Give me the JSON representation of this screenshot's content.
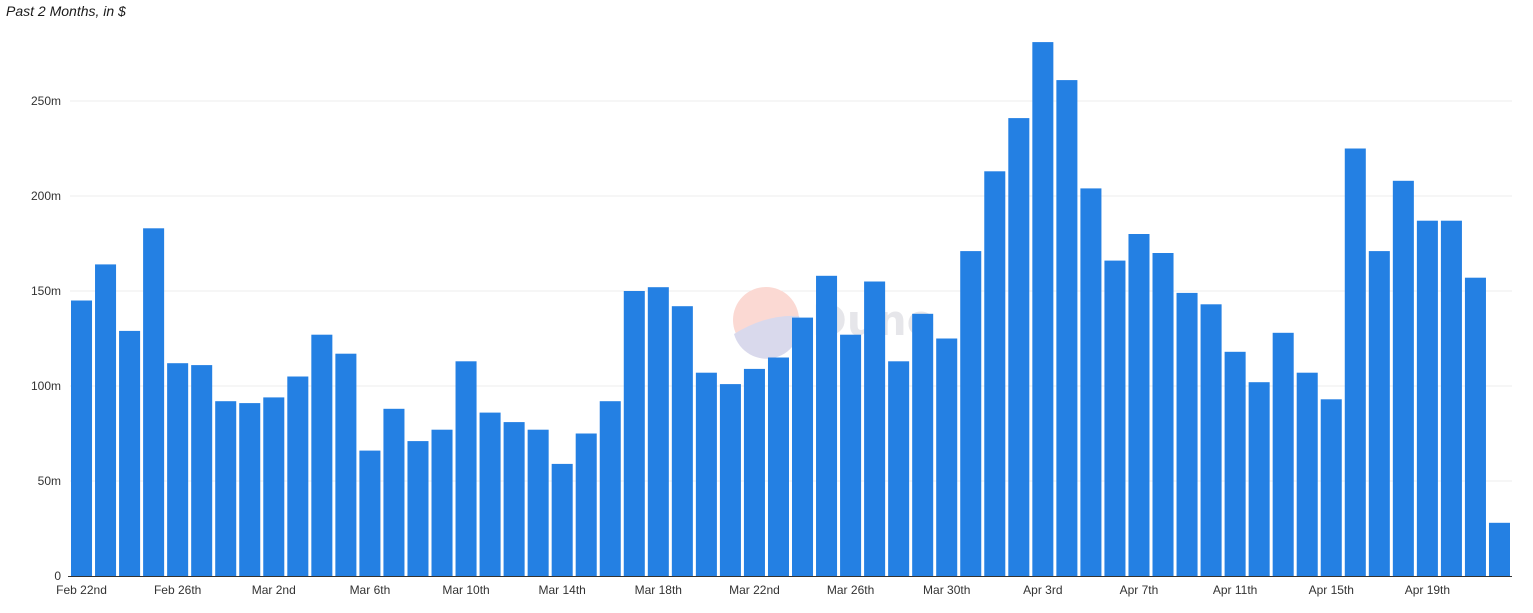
{
  "chart_data": {
    "type": "bar",
    "subtitle": "Past 2 Months, in $",
    "categories": [
      "Feb 22nd",
      "Feb 23rd",
      "Feb 24th",
      "Feb 25th",
      "Feb 26th",
      "Feb 27th",
      "Feb 28th",
      "Mar 1st",
      "Mar 2nd",
      "Mar 3rd",
      "Mar 4th",
      "Mar 5th",
      "Mar 6th",
      "Mar 7th",
      "Mar 8th",
      "Mar 9th",
      "Mar 10th",
      "Mar 11th",
      "Mar 12th",
      "Mar 13th",
      "Mar 14th",
      "Mar 15th",
      "Mar 16th",
      "Mar 17th",
      "Mar 18th",
      "Mar 19th",
      "Mar 20th",
      "Mar 21st",
      "Mar 22nd",
      "Mar 23rd",
      "Mar 24th",
      "Mar 25th",
      "Mar 26th",
      "Mar 27th",
      "Mar 28th",
      "Mar 29th",
      "Mar 30th",
      "Mar 31st",
      "Apr 1st",
      "Apr 2nd",
      "Apr 3rd",
      "Apr 4th",
      "Apr 5th",
      "Apr 6th",
      "Apr 7th",
      "Apr 8th",
      "Apr 9th",
      "Apr 10th",
      "Apr 11th",
      "Apr 12th",
      "Apr 13th",
      "Apr 14th",
      "Apr 15th",
      "Apr 16th",
      "Apr 17th",
      "Apr 18th",
      "Apr 19th",
      "Apr 20th",
      "Apr 21st",
      "Apr 22nd"
    ],
    "values": [
      145,
      164,
      129,
      183,
      112,
      111,
      92,
      91,
      94,
      105,
      127,
      117,
      66,
      88,
      71,
      77,
      113,
      86,
      81,
      77,
      59,
      75,
      92,
      150,
      152,
      142,
      107,
      101,
      109,
      115,
      136,
      158,
      127,
      155,
      113,
      138,
      125,
      171,
      213,
      241,
      281,
      261,
      204,
      166,
      180,
      170,
      149,
      143,
      118,
      102,
      128,
      107,
      93,
      225,
      171,
      208,
      187,
      187,
      157,
      28
    ],
    "ylim": [
      0,
      285
    ],
    "y_ticks": [
      {
        "value": 0,
        "label": "0"
      },
      {
        "value": 50,
        "label": "50m"
      },
      {
        "value": 100,
        "label": "100m"
      },
      {
        "value": 150,
        "label": "150m"
      },
      {
        "value": 200,
        "label": "200m"
      },
      {
        "value": 250,
        "label": "250m"
      }
    ],
    "x_tick_labels": [
      {
        "index": 0,
        "label": "Feb 22nd"
      },
      {
        "index": 4,
        "label": "Feb 26th"
      },
      {
        "index": 8,
        "label": "Mar 2nd"
      },
      {
        "index": 12,
        "label": "Mar 6th"
      },
      {
        "index": 16,
        "label": "Mar 10th"
      },
      {
        "index": 20,
        "label": "Mar 14th"
      },
      {
        "index": 24,
        "label": "Mar 18th"
      },
      {
        "index": 28,
        "label": "Mar 22nd"
      },
      {
        "index": 32,
        "label": "Mar 26th"
      },
      {
        "index": 36,
        "label": "Mar 30th"
      },
      {
        "index": 40,
        "label": "Apr 3rd"
      },
      {
        "index": 44,
        "label": "Apr 7th"
      },
      {
        "index": 48,
        "label": "Apr 11th"
      },
      {
        "index": 52,
        "label": "Apr 15th"
      },
      {
        "index": 56,
        "label": "Apr 19th"
      }
    ],
    "grid": true,
    "legend": "none",
    "bar_color": "#2480e3",
    "watermark": "Dune",
    "watermark_colors": [
      "#fbd9d3",
      "#d9d9ec"
    ]
  }
}
